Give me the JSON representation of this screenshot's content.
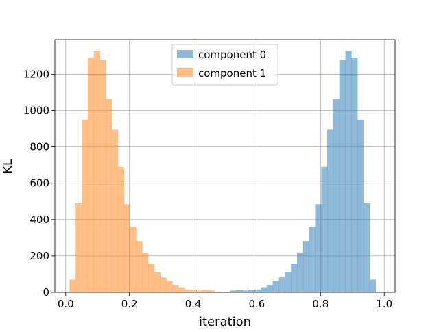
{
  "chart_data": {
    "type": "bar",
    "subtype": "histogram",
    "xlabel": "iteration",
    "ylabel": "KL",
    "xlim": [
      -0.034,
      1.034
    ],
    "ylim": [
      0,
      1390
    ],
    "x_ticks": [
      0.0,
      0.2,
      0.4,
      0.6,
      0.8,
      1.0
    ],
    "x_tick_labels": [
      "0.0",
      "0.2",
      "0.4",
      "0.6",
      "0.8",
      "1.0"
    ],
    "y_ticks": [
      0,
      200,
      400,
      600,
      800,
      1000,
      1200
    ],
    "y_tick_labels": [
      "0",
      "200",
      "400",
      "600",
      "800",
      "1000",
      "1200"
    ],
    "grid": true,
    "legend_position": "top-center",
    "bin_width": 0.019,
    "series": [
      {
        "name": "component 0",
        "color": "#1f77b4",
        "opacity": 0.5,
        "bins": [
          [
            0.422,
            2
          ],
          [
            0.441,
            3
          ],
          [
            0.46,
            2
          ],
          [
            0.479,
            2
          ],
          [
            0.498,
            3
          ],
          [
            0.517,
            10
          ],
          [
            0.536,
            12
          ],
          [
            0.555,
            10
          ],
          [
            0.574,
            15
          ],
          [
            0.593,
            16
          ],
          [
            0.612,
            28
          ],
          [
            0.631,
            40
          ],
          [
            0.65,
            62
          ],
          [
            0.669,
            82
          ],
          [
            0.688,
            110
          ],
          [
            0.707,
            155
          ],
          [
            0.726,
            215
          ],
          [
            0.745,
            282
          ],
          [
            0.764,
            360
          ],
          [
            0.783,
            485
          ],
          [
            0.802,
            690
          ],
          [
            0.821,
            895
          ],
          [
            0.84,
            1065
          ],
          [
            0.859,
            1280
          ],
          [
            0.878,
            1330
          ],
          [
            0.897,
            1290
          ],
          [
            0.916,
            950
          ],
          [
            0.935,
            490
          ],
          [
            0.954,
            70
          ]
        ]
      },
      {
        "name": "component 1",
        "color": "#ff7f0e",
        "opacity": 0.5,
        "bins": [
          [
            0.012,
            70
          ],
          [
            0.031,
            490
          ],
          [
            0.05,
            950
          ],
          [
            0.069,
            1290
          ],
          [
            0.088,
            1330
          ],
          [
            0.107,
            1280
          ],
          [
            0.126,
            1065
          ],
          [
            0.145,
            895
          ],
          [
            0.164,
            690
          ],
          [
            0.183,
            485
          ],
          [
            0.202,
            360
          ],
          [
            0.221,
            282
          ],
          [
            0.24,
            215
          ],
          [
            0.259,
            155
          ],
          [
            0.278,
            110
          ],
          [
            0.297,
            82
          ],
          [
            0.316,
            62
          ],
          [
            0.335,
            40
          ],
          [
            0.354,
            28
          ],
          [
            0.373,
            16
          ],
          [
            0.392,
            15
          ],
          [
            0.411,
            10
          ],
          [
            0.43,
            12
          ],
          [
            0.449,
            10
          ],
          [
            0.468,
            3
          ],
          [
            0.487,
            2
          ],
          [
            0.506,
            2
          ],
          [
            0.525,
            3
          ],
          [
            0.544,
            2
          ]
        ]
      }
    ]
  }
}
